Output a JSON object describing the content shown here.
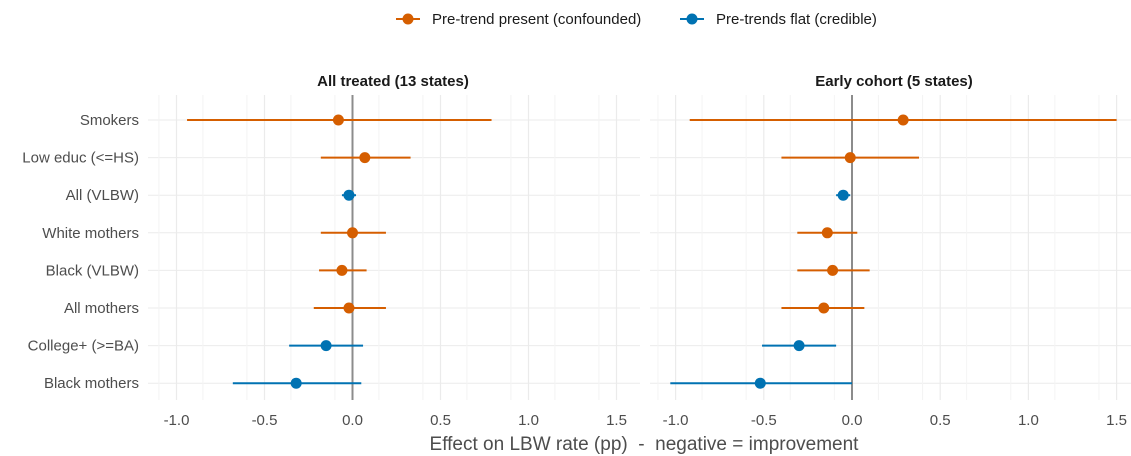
{
  "chart_data": {
    "type": "forest",
    "xlabel": "Effect on LBW rate (pp)  -  negative = improvement",
    "xlim": [
      -1.1,
      1.6
    ],
    "x_ticks": [
      -1.0,
      -0.5,
      0.0,
      0.5,
      1.0,
      1.5
    ],
    "x_tick_labels": [
      "-1.0",
      "-0.5",
      "0.0",
      "0.5",
      "1.0",
      "1.5"
    ],
    "reference_line": 0,
    "grid": true,
    "legend": {
      "position": "top",
      "entries": [
        {
          "name": "Pre-trend present (confounded)",
          "color": "#D55E00"
        },
        {
          "name": "Pre-trends flat (credible)",
          "color": "#0072B2"
        }
      ]
    },
    "outcomes": [
      "Smokers",
      "Low educ (<=HS)",
      "All (VLBW)",
      "White mothers",
      "Black (VLBW)",
      "All mothers",
      "College+ (>=BA)",
      "Black mothers"
    ],
    "panels": [
      {
        "title": "All treated (13 states)",
        "points": [
          {
            "outcome": "Smokers",
            "estimate": -0.08,
            "lo": -0.94,
            "hi": 0.79,
            "group": "Pre-trend present (confounded)"
          },
          {
            "outcome": "Low educ (<=HS)",
            "estimate": 0.07,
            "lo": -0.18,
            "hi": 0.33,
            "group": "Pre-trend present (confounded)"
          },
          {
            "outcome": "All (VLBW)",
            "estimate": -0.02,
            "lo": -0.06,
            "hi": 0.02,
            "group": "Pre-trends flat (credible)"
          },
          {
            "outcome": "White mothers",
            "estimate": 0.0,
            "lo": -0.18,
            "hi": 0.19,
            "group": "Pre-trend present (confounded)"
          },
          {
            "outcome": "Black (VLBW)",
            "estimate": -0.06,
            "lo": -0.19,
            "hi": 0.08,
            "group": "Pre-trend present (confounded)"
          },
          {
            "outcome": "All mothers",
            "estimate": -0.02,
            "lo": -0.22,
            "hi": 0.19,
            "group": "Pre-trend present (confounded)"
          },
          {
            "outcome": "College+ (>=BA)",
            "estimate": -0.15,
            "lo": -0.36,
            "hi": 0.06,
            "group": "Pre-trends flat (credible)"
          },
          {
            "outcome": "Black mothers",
            "estimate": -0.32,
            "lo": -0.68,
            "hi": 0.05,
            "group": "Pre-trends flat (credible)"
          }
        ]
      },
      {
        "title": "Early cohort (5 states)",
        "points": [
          {
            "outcome": "Smokers",
            "estimate": 0.29,
            "lo": -0.92,
            "hi": 1.5,
            "group": "Pre-trend present (confounded)"
          },
          {
            "outcome": "Low educ (<=HS)",
            "estimate": -0.01,
            "lo": -0.4,
            "hi": 0.38,
            "group": "Pre-trend present (confounded)"
          },
          {
            "outcome": "All (VLBW)",
            "estimate": -0.05,
            "lo": -0.09,
            "hi": -0.01,
            "group": "Pre-trends flat (credible)"
          },
          {
            "outcome": "White mothers",
            "estimate": -0.14,
            "lo": -0.31,
            "hi": 0.03,
            "group": "Pre-trend present (confounded)"
          },
          {
            "outcome": "Black (VLBW)",
            "estimate": -0.11,
            "lo": -0.31,
            "hi": 0.1,
            "group": "Pre-trend present (confounded)"
          },
          {
            "outcome": "All mothers",
            "estimate": -0.16,
            "lo": -0.4,
            "hi": 0.07,
            "group": "Pre-trend present (confounded)"
          },
          {
            "outcome": "College+ (>=BA)",
            "estimate": -0.3,
            "lo": -0.51,
            "hi": -0.09,
            "group": "Pre-trends flat (credible)"
          },
          {
            "outcome": "Black mothers",
            "estimate": -0.52,
            "lo": -1.03,
            "hi": 0.0,
            "group": "Pre-trends flat (credible)"
          }
        ]
      }
    ]
  }
}
